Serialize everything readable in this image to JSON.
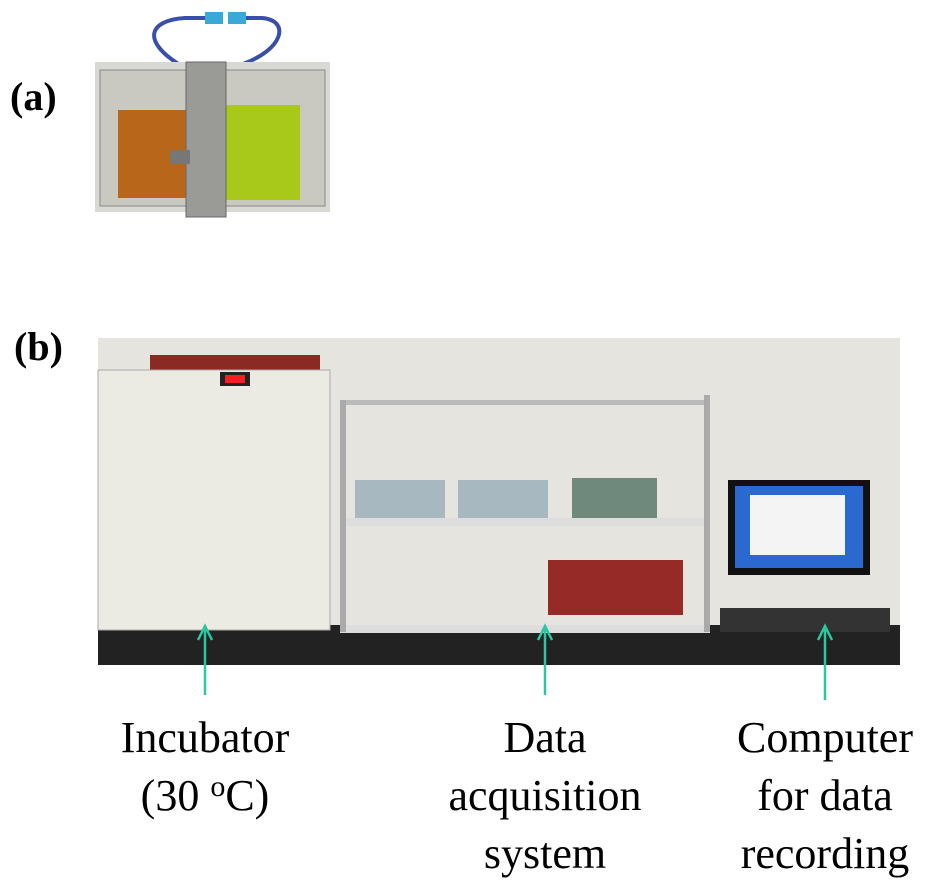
{
  "panels": [
    {
      "label": "(a)"
    },
    {
      "label": "(b)"
    }
  ],
  "callouts": [
    {
      "lines": [
        "Incubator"
      ],
      "detail": {
        "before": "(30 ",
        "superscript": "o",
        "after": "C)"
      }
    },
    {
      "lines": [
        "Data",
        "acquisition",
        "system"
      ]
    },
    {
      "lines": [
        "Computer",
        "for data",
        "recording"
      ]
    }
  ]
}
